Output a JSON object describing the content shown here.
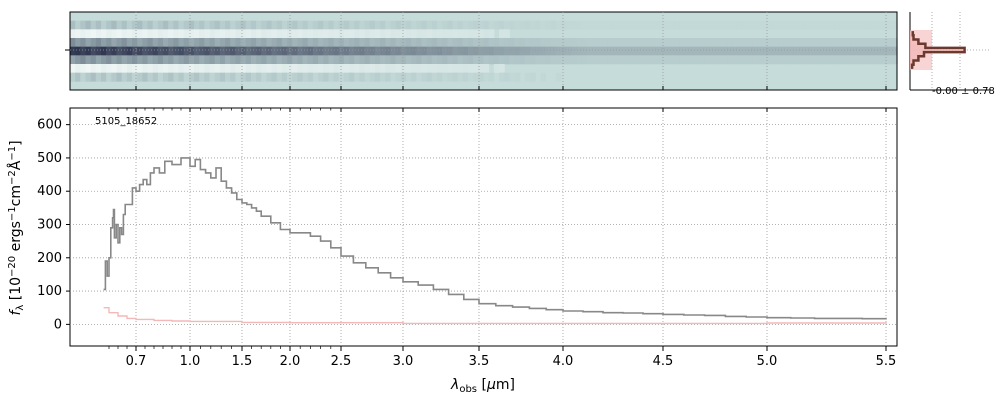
{
  "figure": {
    "object_id": "5105_18652",
    "noise_label": "-0.00 ± 0.78",
    "ylabel": "f_λ [10^−20 ergs^−1cm^−2Å^−1]",
    "xlabel": "λ_obs [μm]"
  },
  "chart_data": [
    {
      "type": "heatmap",
      "panel": "2d-spectrum",
      "description_free": true,
      "colormap": [
        "#ffffff",
        "#c5dcda",
        "#2f3650"
      ],
      "x_range": [
        0.5,
        5.52
      ],
      "rows": [
        {
          "y": -4,
          "level": 0.0
        },
        {
          "y": -3,
          "level": 0.08
        },
        {
          "y": -2,
          "level": -0.05
        },
        {
          "y": -1,
          "level": 0.35
        },
        {
          "y": 0,
          "level": 0.9
        },
        {
          "y": 1,
          "level": 0.35
        },
        {
          "y": 2,
          "level": -0.05
        },
        {
          "y": 3,
          "level": 0.05
        },
        {
          "y": 4,
          "level": 0.0
        }
      ]
    },
    {
      "type": "line",
      "panel": "1d-spectrum",
      "xlim": [
        0.5,
        5.52
      ],
      "ylim": [
        -65,
        650
      ],
      "x_ticks": [
        0.7,
        1.0,
        1.5,
        2.0,
        2.5,
        3.0,
        3.5,
        4.0,
        4.5,
        5.0,
        5.5
      ],
      "x_tick_labels": [
        "0.7",
        "1.0",
        "1.5",
        "2.0",
        "2.5",
        "3.0",
        "3.5",
        "4.0",
        "4.5",
        "5.0",
        "5.5"
      ],
      "y_ticks": [
        0,
        100,
        200,
        300,
        400,
        500,
        600
      ],
      "y_tick_labels": [
        "0",
        "100",
        "200",
        "300",
        "400",
        "500",
        "600"
      ],
      "grid": true,
      "series": [
        {
          "role": "flux",
          "color": "#888888",
          "points": [
            [
              0.52,
              105
            ],
            [
              0.53,
              190
            ],
            [
              0.54,
              145
            ],
            [
              0.55,
              200
            ],
            [
              0.56,
              290
            ],
            [
              0.57,
              320
            ],
            [
              0.575,
              345
            ],
            [
              0.58,
              260
            ],
            [
              0.59,
              300
            ],
            [
              0.6,
              245
            ],
            [
              0.61,
              290
            ],
            [
              0.62,
              270
            ],
            [
              0.63,
              330
            ],
            [
              0.64,
              360
            ],
            [
              0.66,
              360
            ],
            [
              0.68,
              410
            ],
            [
              0.7,
              400
            ],
            [
              0.72,
              420
            ],
            [
              0.74,
              435
            ],
            [
              0.76,
              420
            ],
            [
              0.78,
              455
            ],
            [
              0.8,
              470
            ],
            [
              0.83,
              455
            ],
            [
              0.86,
              490
            ],
            [
              0.9,
              480
            ],
            [
              0.95,
              500
            ],
            [
              1.0,
              475
            ],
            [
              1.05,
              495
            ],
            [
              1.1,
              465
            ],
            [
              1.15,
              455
            ],
            [
              1.2,
              440
            ],
            [
              1.25,
              470
            ],
            [
              1.3,
              430
            ],
            [
              1.35,
              410
            ],
            [
              1.4,
              395
            ],
            [
              1.45,
              375
            ],
            [
              1.5,
              365
            ],
            [
              1.55,
              360
            ],
            [
              1.6,
              350
            ],
            [
              1.65,
              340
            ],
            [
              1.7,
              325
            ],
            [
              1.8,
              305
            ],
            [
              1.9,
              285
            ],
            [
              2.0,
              275
            ],
            [
              2.1,
              275
            ],
            [
              2.2,
              265
            ],
            [
              2.3,
              250
            ],
            [
              2.4,
              230
            ],
            [
              2.5,
              205
            ],
            [
              2.6,
              185
            ],
            [
              2.7,
              170
            ],
            [
              2.8,
              155
            ],
            [
              2.9,
              140
            ],
            [
              3.0,
              128
            ],
            [
              3.1,
              118
            ],
            [
              3.2,
              105
            ],
            [
              3.3,
              90
            ],
            [
              3.4,
              75
            ],
            [
              3.5,
              62
            ],
            [
              3.6,
              56
            ],
            [
              3.7,
              52
            ],
            [
              3.8,
              48
            ],
            [
              3.9,
              44
            ],
            [
              4.0,
              40
            ],
            [
              4.1,
              38
            ],
            [
              4.2,
              35
            ],
            [
              4.3,
              34
            ],
            [
              4.4,
              32
            ],
            [
              4.5,
              30
            ],
            [
              4.6,
              28
            ],
            [
              4.7,
              27
            ],
            [
              4.8,
              24
            ],
            [
              4.9,
              22
            ],
            [
              5.0,
              20
            ],
            [
              5.1,
              19
            ],
            [
              5.2,
              18
            ],
            [
              5.3,
              18
            ],
            [
              5.4,
              17
            ],
            [
              5.5,
              20
            ]
          ]
        },
        {
          "role": "error",
          "color": "#f4b8b8",
          "points": [
            [
              0.52,
              50
            ],
            [
              0.55,
              35
            ],
            [
              0.6,
              25
            ],
            [
              0.65,
              18
            ],
            [
              0.7,
              15
            ],
            [
              0.8,
              12
            ],
            [
              0.9,
              10
            ],
            [
              1.0,
              9
            ],
            [
              1.5,
              6
            ],
            [
              2.0,
              5
            ],
            [
              3.0,
              3
            ],
            [
              4.0,
              3
            ],
            [
              5.0,
              4
            ],
            [
              5.5,
              8
            ]
          ]
        }
      ]
    },
    {
      "type": "bar",
      "panel": "noise-histogram",
      "color": "#f4b8b8",
      "bins": [
        {
          "v": -4,
          "count": 0.04
        },
        {
          "v": -3,
          "count": 0.05
        },
        {
          "v": -2,
          "count": 0.12
        },
        {
          "v": -1,
          "count": 0.22
        },
        {
          "v": 0,
          "count": 0.78
        },
        {
          "v": 1,
          "count": 0.2
        },
        {
          "v": 2,
          "count": 0.12
        },
        {
          "v": 3,
          "count": 0.05
        },
        {
          "v": 4,
          "count": 0.03
        }
      ]
    }
  ]
}
